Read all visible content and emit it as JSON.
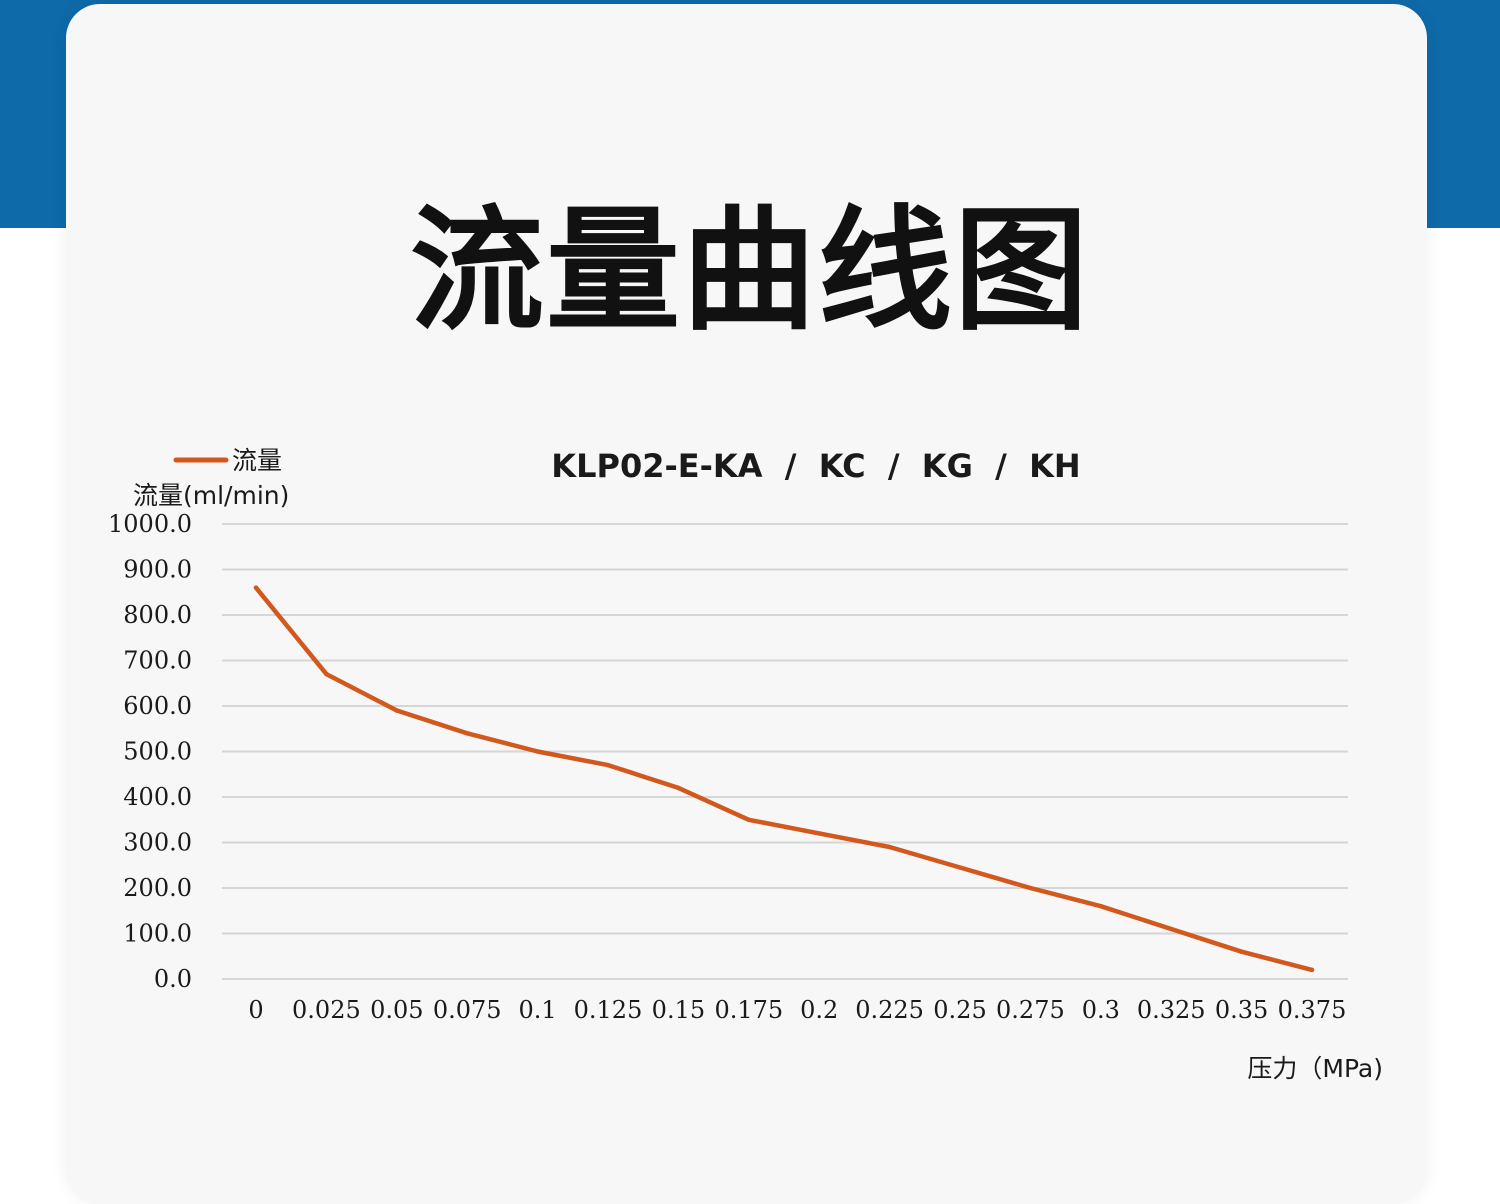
{
  "page": {
    "heading": "流量曲线图",
    "colors": {
      "band": "#0e6aa8",
      "card": "#f7f7f7",
      "line": "#d2581d"
    }
  },
  "chart_data": {
    "type": "line",
    "title": "KLP02-E-KA  /  KC  /  KG  /  KH",
    "xlabel": "压力（MPa)",
    "ylabel": "流量(ml/min)",
    "legend": "top-left",
    "grid": true,
    "ylim": [
      0,
      1000
    ],
    "y_ticks": [
      "0.0",
      "100.0",
      "200.0",
      "300.0",
      "400.0",
      "500.0",
      "600.0",
      "700.0",
      "800.0",
      "900.0",
      "1000.0"
    ],
    "categories": [
      "0",
      "0.025",
      "0.05",
      "0.075",
      "0.1",
      "0.125",
      "0.15",
      "0.175",
      "0.2",
      "0.225",
      "0.25",
      "0.275",
      "0.3",
      "0.325",
      "0.35",
      "0.375"
    ],
    "series": [
      {
        "name": "流量",
        "color": "#d2581d",
        "values": [
          860,
          670,
          590,
          540,
          500,
          470,
          420,
          350,
          320,
          290,
          245,
          200,
          160,
          110,
          60,
          20
        ]
      }
    ]
  }
}
